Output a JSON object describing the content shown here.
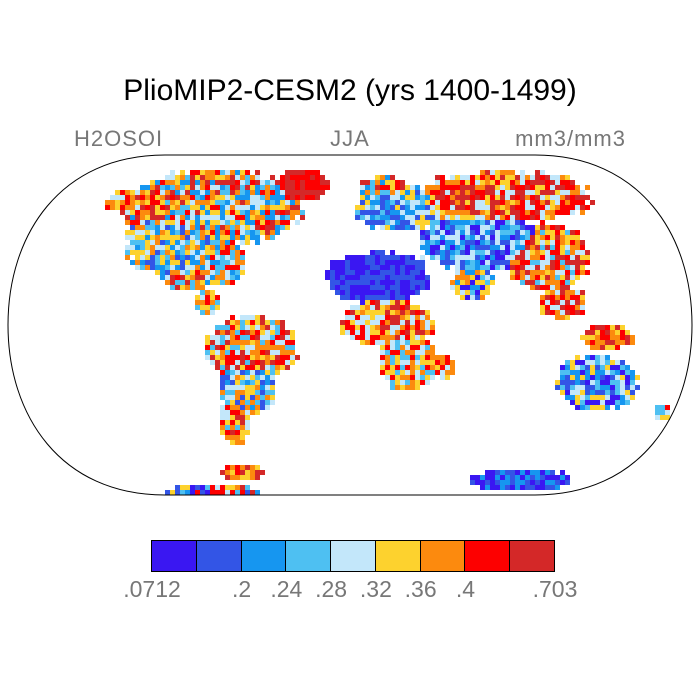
{
  "title": "PlioMIP2-CESM2 (yrs 1400-1499)",
  "variable": "H2OSOI",
  "season": "JJA",
  "units": "mm3/mm3",
  "colorbar": {
    "colors": [
      "#3a17f2",
      "#3355e6",
      "#1696f0",
      "#4ec0f2",
      "#c3e7fa",
      "#fdd22e",
      "#fc8a0e",
      "#fd0000",
      "#d42828"
    ],
    "tick_labels": [
      ".0712",
      ".2",
      ".24",
      ".28",
      ".32",
      ".36",
      ".4",
      ".703"
    ]
  },
  "map": {
    "projection": "Robinson",
    "ocean_color": "#ffffff",
    "coastline_color": "#000000"
  }
}
